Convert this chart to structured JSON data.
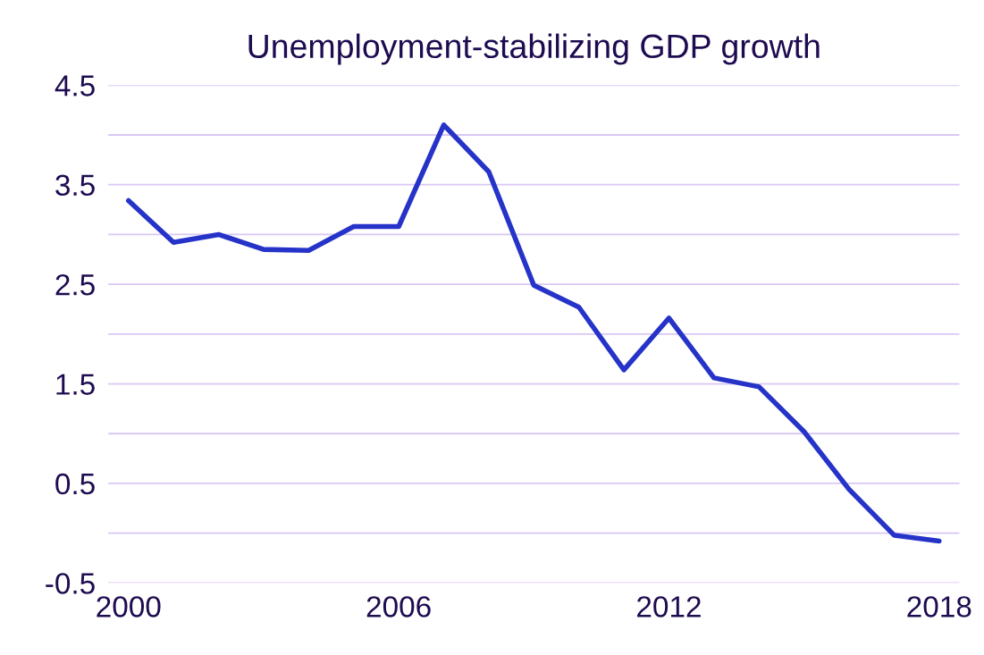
{
  "chart_data": {
    "type": "line",
    "title": "Unemployment-stabilizing GDP growth",
    "x": [
      2000,
      2001,
      2002,
      2003,
      2004,
      2005,
      2006,
      2007,
      2008,
      2009,
      2010,
      2011,
      2012,
      2013,
      2014,
      2015,
      2016,
      2017,
      2018
    ],
    "series": [
      {
        "color": "#2633c8",
        "values": [
          3.34,
          2.92,
          3.0,
          2.85,
          2.84,
          3.08,
          3.08,
          4.1,
          3.63,
          2.49,
          2.27,
          1.64,
          2.16,
          1.56,
          1.47,
          1.02,
          0.44,
          -0.02,
          -0.08
        ]
      }
    ],
    "xlim": [
      1999.55,
      2018.45
    ],
    "xticks": [
      2000,
      2006,
      2012,
      2018
    ],
    "ylim": [
      -0.5,
      4.5
    ],
    "yticks": [
      {
        "value": -0.5,
        "label": "-0.5"
      },
      {
        "value": 0,
        "label": null
      },
      {
        "value": 0.5,
        "label": "0.5"
      },
      {
        "value": 1,
        "label": null
      },
      {
        "value": 1.5,
        "label": "1.5"
      },
      {
        "value": 2,
        "label": null
      },
      {
        "value": 2.5,
        "label": "2.5"
      },
      {
        "value": 3,
        "label": null
      },
      {
        "value": 3.5,
        "label": "3.5"
      },
      {
        "value": 4,
        "label": null
      },
      {
        "value": 4.5,
        "label": "4.5"
      }
    ],
    "grid": "y",
    "legend": false
  }
}
